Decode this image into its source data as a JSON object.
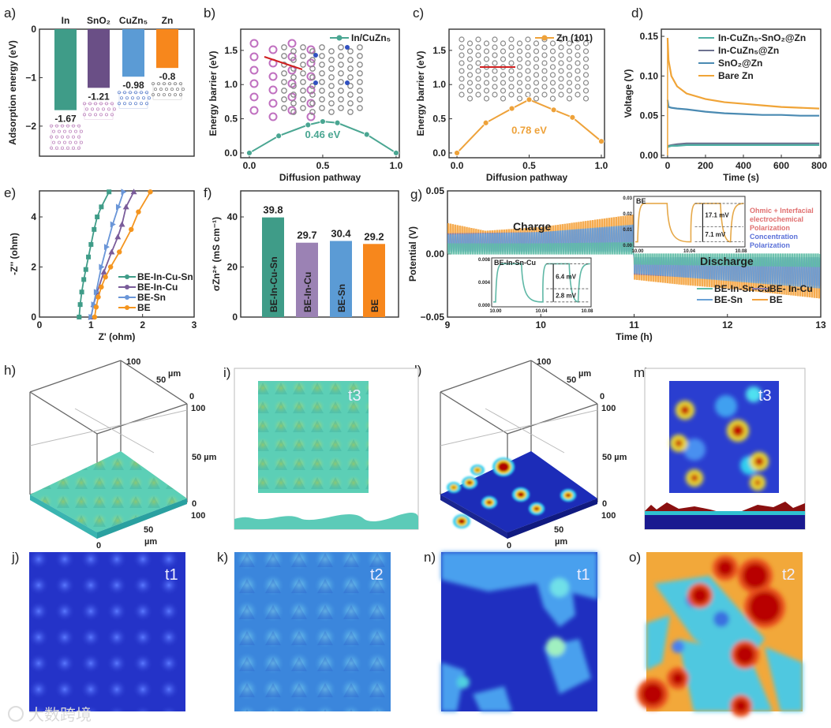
{
  "watermark": "大数跨境",
  "chart_data": [
    {
      "panel": "a)",
      "type": "bar",
      "ylabel": "Adsorption energy (eV)",
      "categories": [
        "In",
        "SnO₂",
        "CuZn₅",
        "Zn"
      ],
      "values": [
        -1.67,
        -1.21,
        -0.98,
        -0.8
      ],
      "value_labels": [
        "-1.67",
        "-1.21",
        "-0.98",
        "-0.8"
      ],
      "colors": [
        "#3f9c88",
        "#6a4f86",
        "#5b9bd5",
        "#f7871c"
      ],
      "ylim": [
        -2.62,
        0
      ],
      "yticks": [
        0,
        -1,
        -2
      ],
      "ytick_labels": [
        "0",
        "−1",
        "−2"
      ]
    },
    {
      "panel": "b)",
      "type": "line",
      "xlabel": "Diffusion pathway",
      "ylabel": "Energy barrier (eV)",
      "xlim": [
        -0.059,
        1.022
      ],
      "ylim": [
        -0.07,
        1.81
      ],
      "xticks": [
        0,
        0.5,
        1
      ],
      "xtick_labels": [
        "0.0",
        "0.5",
        "1.0"
      ],
      "yticks": [
        0,
        0.5,
        1,
        1.5
      ],
      "ytick_labels": [
        "0.0",
        "0.5",
        "1.0",
        "1.5"
      ],
      "annotation": "0.46 eV",
      "series": [
        {
          "name": "In/CuZn₅",
          "color": "#4aa692",
          "x": [
            0,
            0.2,
            0.4,
            0.5,
            0.6,
            0.8,
            1.0
          ],
          "y": [
            0,
            0.25,
            0.41,
            0.46,
            0.44,
            0.27,
            0.0
          ]
        }
      ]
    },
    {
      "panel": "c)",
      "type": "line",
      "xlabel": "Diffusion pathway",
      "ylabel": "Energy barrier (eV)",
      "xlim": [
        -0.055,
        1.022
      ],
      "ylim": [
        -0.07,
        1.81
      ],
      "xticks": [
        0,
        0.5,
        1
      ],
      "xtick_labels": [
        "0.0",
        "0.5",
        "1.0"
      ],
      "yticks": [
        0,
        0.5,
        1,
        1.5
      ],
      "ytick_labels": [
        "0.0",
        "0.5",
        "1.0",
        "1.5"
      ],
      "annotation": "0.78 eV",
      "series": [
        {
          "name": "Zn (101)",
          "color": "#eea23a",
          "x": [
            0,
            0.2,
            0.38,
            0.5,
            0.67,
            0.8,
            1.0
          ],
          "y": [
            0,
            0.44,
            0.65,
            0.78,
            0.63,
            0.52,
            0.17
          ]
        }
      ]
    },
    {
      "panel": "d)",
      "type": "line",
      "xlabel": "Time (s)",
      "ylabel": "Voltage (V)",
      "xlim": [
        -33,
        808
      ],
      "ylim": [
        -0.003,
        0.159
      ],
      "xticks": [
        0,
        200,
        400,
        600,
        800
      ],
      "xtick_labels": [
        "0",
        "200",
        "400",
        "600",
        "800"
      ],
      "yticks": [
        0,
        0.05,
        0.1,
        0.15
      ],
      "ytick_labels": [
        "0.00",
        "0.05",
        "0.10",
        "0.15"
      ],
      "series": [
        {
          "name": "In-CuZn₅-SnO₂@Zn",
          "color": "#4fb0a4",
          "x": [
            0,
            5,
            20,
            50,
            100,
            200,
            300,
            400,
            500,
            600,
            700,
            800
          ],
          "y": [
            0.01,
            0.011,
            0.012,
            0.012,
            0.013,
            0.013,
            0.013,
            0.013,
            0.013,
            0.013,
            0.013,
            0.013
          ]
        },
        {
          "name": "In-CuZn₅@Zn",
          "color": "#6d7290",
          "x": [
            0,
            5,
            20,
            50,
            100,
            200,
            300,
            400,
            500,
            600,
            700,
            800
          ],
          "y": [
            0.011,
            0.012,
            0.013,
            0.014,
            0.015,
            0.015,
            0.015,
            0.015,
            0.015,
            0.015,
            0.015,
            0.015
          ]
        },
        {
          "name": "SnO₂@Zn",
          "color": "#4a8ab2",
          "x": [
            0,
            5,
            20,
            50,
            100,
            200,
            300,
            400,
            500,
            600,
            700,
            800
          ],
          "y": [
            0.07,
            0.061,
            0.06,
            0.059,
            0.058,
            0.055,
            0.053,
            0.052,
            0.051,
            0.051,
            0.05,
            0.05
          ]
        },
        {
          "name": "Bare Zn",
          "color": "#f0a437",
          "x": [
            0,
            5,
            20,
            50,
            100,
            200,
            300,
            400,
            500,
            600,
            700,
            800
          ],
          "y": [
            0.148,
            0.12,
            0.1,
            0.087,
            0.078,
            0.071,
            0.067,
            0.065,
            0.063,
            0.061,
            0.06,
            0.059
          ]
        }
      ]
    },
    {
      "panel": "e)",
      "type": "scatter",
      "xlabel": "Z' (ohm)",
      "ylabel": "-Z'' (ohm)",
      "xlim": [
        0,
        3
      ],
      "ylim": [
        0,
        5.04
      ],
      "xticks": [
        0,
        1,
        2,
        3
      ],
      "xtick_labels": [
        "0",
        "1",
        "2",
        "3"
      ],
      "yticks": [
        0,
        2,
        4
      ],
      "ytick_labels": [
        "0",
        "2",
        "4"
      ],
      "series": [
        {
          "name": "BE-In-Cu-Sn",
          "color": "#3f9c88",
          "marker": "square",
          "x": [
            0.77,
            0.79,
            0.82,
            0.86,
            0.9,
            0.95,
            1.0,
            1.06,
            1.12,
            1.2,
            1.35
          ],
          "y": [
            0,
            0.5,
            1.0,
            1.5,
            1.9,
            2.4,
            2.9,
            3.5,
            4.0,
            4.4,
            5.0
          ]
        },
        {
          "name": "BE-In-Cu",
          "color": "#7a5c9a",
          "marker": "triangle-up",
          "x": [
            1.0,
            1.05,
            1.12,
            1.25,
            1.4,
            1.52,
            1.6,
            1.68,
            1.83
          ],
          "y": [
            0,
            0.5,
            1.0,
            1.8,
            2.6,
            3.2,
            3.7,
            4.4,
            5.0
          ]
        },
        {
          "name": "BE-Sn",
          "color": "#6a96d8",
          "marker": "triangle-right",
          "x": [
            1.0,
            1.05,
            1.1,
            1.2,
            1.3,
            1.42,
            1.53,
            1.63
          ],
          "y": [
            0,
            0.5,
            1.0,
            2.0,
            2.8,
            3.7,
            4.4,
            5.0
          ]
        },
        {
          "name": "BE",
          "color": "#f4951f",
          "marker": "circle",
          "x": [
            1.07,
            1.1,
            1.14,
            1.2,
            1.28,
            1.38,
            1.55,
            1.78,
            1.92,
            2.15
          ],
          "y": [
            0,
            0.4,
            0.8,
            1.2,
            1.6,
            2.0,
            2.6,
            3.5,
            4.2,
            5.0
          ]
        }
      ]
    },
    {
      "panel": "f)",
      "type": "bar",
      "ylabel": "σZn²⁺ (mS cm⁻¹)",
      "categories": [
        "BE-In-Cu-Sn",
        "BE-In-Cu",
        "BE-Sn",
        "BE"
      ],
      "values": [
        39.8,
        29.7,
        30.4,
        29.2
      ],
      "value_labels": [
        "39.8",
        "29.7",
        "30.4",
        "29.2"
      ],
      "colors": [
        "#3f9c88",
        "#9b82b4",
        "#5b9bd5",
        "#f7871c"
      ],
      "ylim": [
        0,
        50.4
      ],
      "yticks": [
        0,
        20,
        40
      ],
      "ytick_labels": [
        "0",
        "20",
        "40"
      ]
    },
    {
      "panel": "g)",
      "type": "line",
      "xlabel": "Time (h)",
      "ylabel": "Potential (V)",
      "xlim": [
        9,
        13
      ],
      "ylim": [
        -0.05,
        0.05
      ],
      "xticks": [
        9,
        10,
        11,
        12,
        13
      ],
      "xtick_labels": [
        "9",
        "10",
        "11",
        "12",
        "13"
      ],
      "yticks": [
        -0.05,
        0,
        0.05
      ],
      "ytick_labels": [
        "−0.05",
        "0.00",
        "0.05"
      ],
      "charge_label": "Charge",
      "discharge_label": "Discharge",
      "series": [
        {
          "name": "BE",
          "color": "#f4a23c",
          "charge_lower": 0.005,
          "charge_upper": [
            [
              9,
              0.024
            ],
            [
              9.4,
              0.018
            ],
            [
              10,
              0.021
            ],
            [
              11,
              0.031
            ]
          ],
          "discharge_upper": -0.005,
          "discharge_lower": [
            [
              11,
              -0.02
            ],
            [
              11.5,
              -0.024
            ],
            [
              12,
              -0.027
            ],
            [
              13,
              -0.035
            ]
          ]
        },
        {
          "name": "BE- In-Cu",
          "color": "#8a7aa8",
          "charge_lower": 0.003,
          "charge_upper": [
            [
              9,
              0.016
            ],
            [
              10,
              0.017
            ],
            [
              11,
              0.022
            ]
          ],
          "discharge_upper": -0.003,
          "discharge_lower": [
            [
              11,
              -0.016
            ],
            [
              12,
              -0.02
            ],
            [
              13,
              -0.025
            ]
          ]
        },
        {
          "name": "BE-Sn",
          "color": "#6aa2d6",
          "charge_lower": 0.002,
          "charge_upper": [
            [
              9,
              0.015
            ],
            [
              10,
              0.017
            ],
            [
              11,
              0.023
            ]
          ],
          "discharge_upper": -0.003,
          "discharge_lower": [
            [
              11,
              -0.015
            ],
            [
              12,
              -0.021
            ],
            [
              13,
              -0.027
            ]
          ]
        },
        {
          "name": "BE-In-Sn-Cu",
          "color": "#5fbca6",
          "charge_lower": 0.0,
          "charge_upper": [
            [
              9,
              0.008
            ],
            [
              10,
              0.008
            ],
            [
              11,
              0.009
            ]
          ],
          "discharge_upper": 0.0,
          "discharge_lower": [
            [
              11,
              -0.008
            ],
            [
              12,
              -0.009
            ],
            [
              13,
              -0.01
            ]
          ]
        }
      ],
      "insets": [
        {
          "title": "BE",
          "color": "#e6a94a",
          "xtick_labels": [
            "10.00",
            "10.04",
            "10.08"
          ],
          "ytick_labels": [
            "0.03",
            "0.02",
            "0.01",
            "0.00"
          ],
          "annotations": [
            "17.1 mV",
            "7.1 mV"
          ],
          "side_notes": [
            "Ohmic + Interfacial",
            "electrochemical",
            "Polarization",
            "Concentration",
            "Polarization"
          ]
        },
        {
          "title": "BE-In-Sn-Cu",
          "color": "#5fb8a6",
          "xtick_labels": [
            "10.00",
            "10.04",
            "10.08"
          ],
          "ytick_labels": [
            "0.008",
            "0.004",
            "0.000"
          ],
          "annotations": [
            "6.4 mV",
            "2.8 mV"
          ]
        }
      ]
    }
  ],
  "surface_panels": {
    "h": {
      "label": "h)",
      "axis_labels": [
        "100",
        "50",
        "µm",
        "0",
        "100",
        "50 µm",
        "0",
        "100",
        "50",
        "µm",
        "0"
      ]
    },
    "i": {
      "label": "i)",
      "time": "t3"
    },
    "l": {
      "label": "l)",
      "axis_labels": [
        "100",
        "50",
        "µm",
        "0",
        "100",
        "50 µm",
        "0",
        "100",
        "50",
        "µm",
        "0"
      ]
    },
    "m": {
      "label": "m)",
      "time": "t3"
    },
    "j": {
      "label": "j)",
      "time": "t1"
    },
    "k": {
      "label": "k)",
      "time": "t2"
    },
    "n": {
      "label": "n)",
      "time": "t1"
    },
    "o": {
      "label": "o)",
      "time": "t2"
    }
  }
}
